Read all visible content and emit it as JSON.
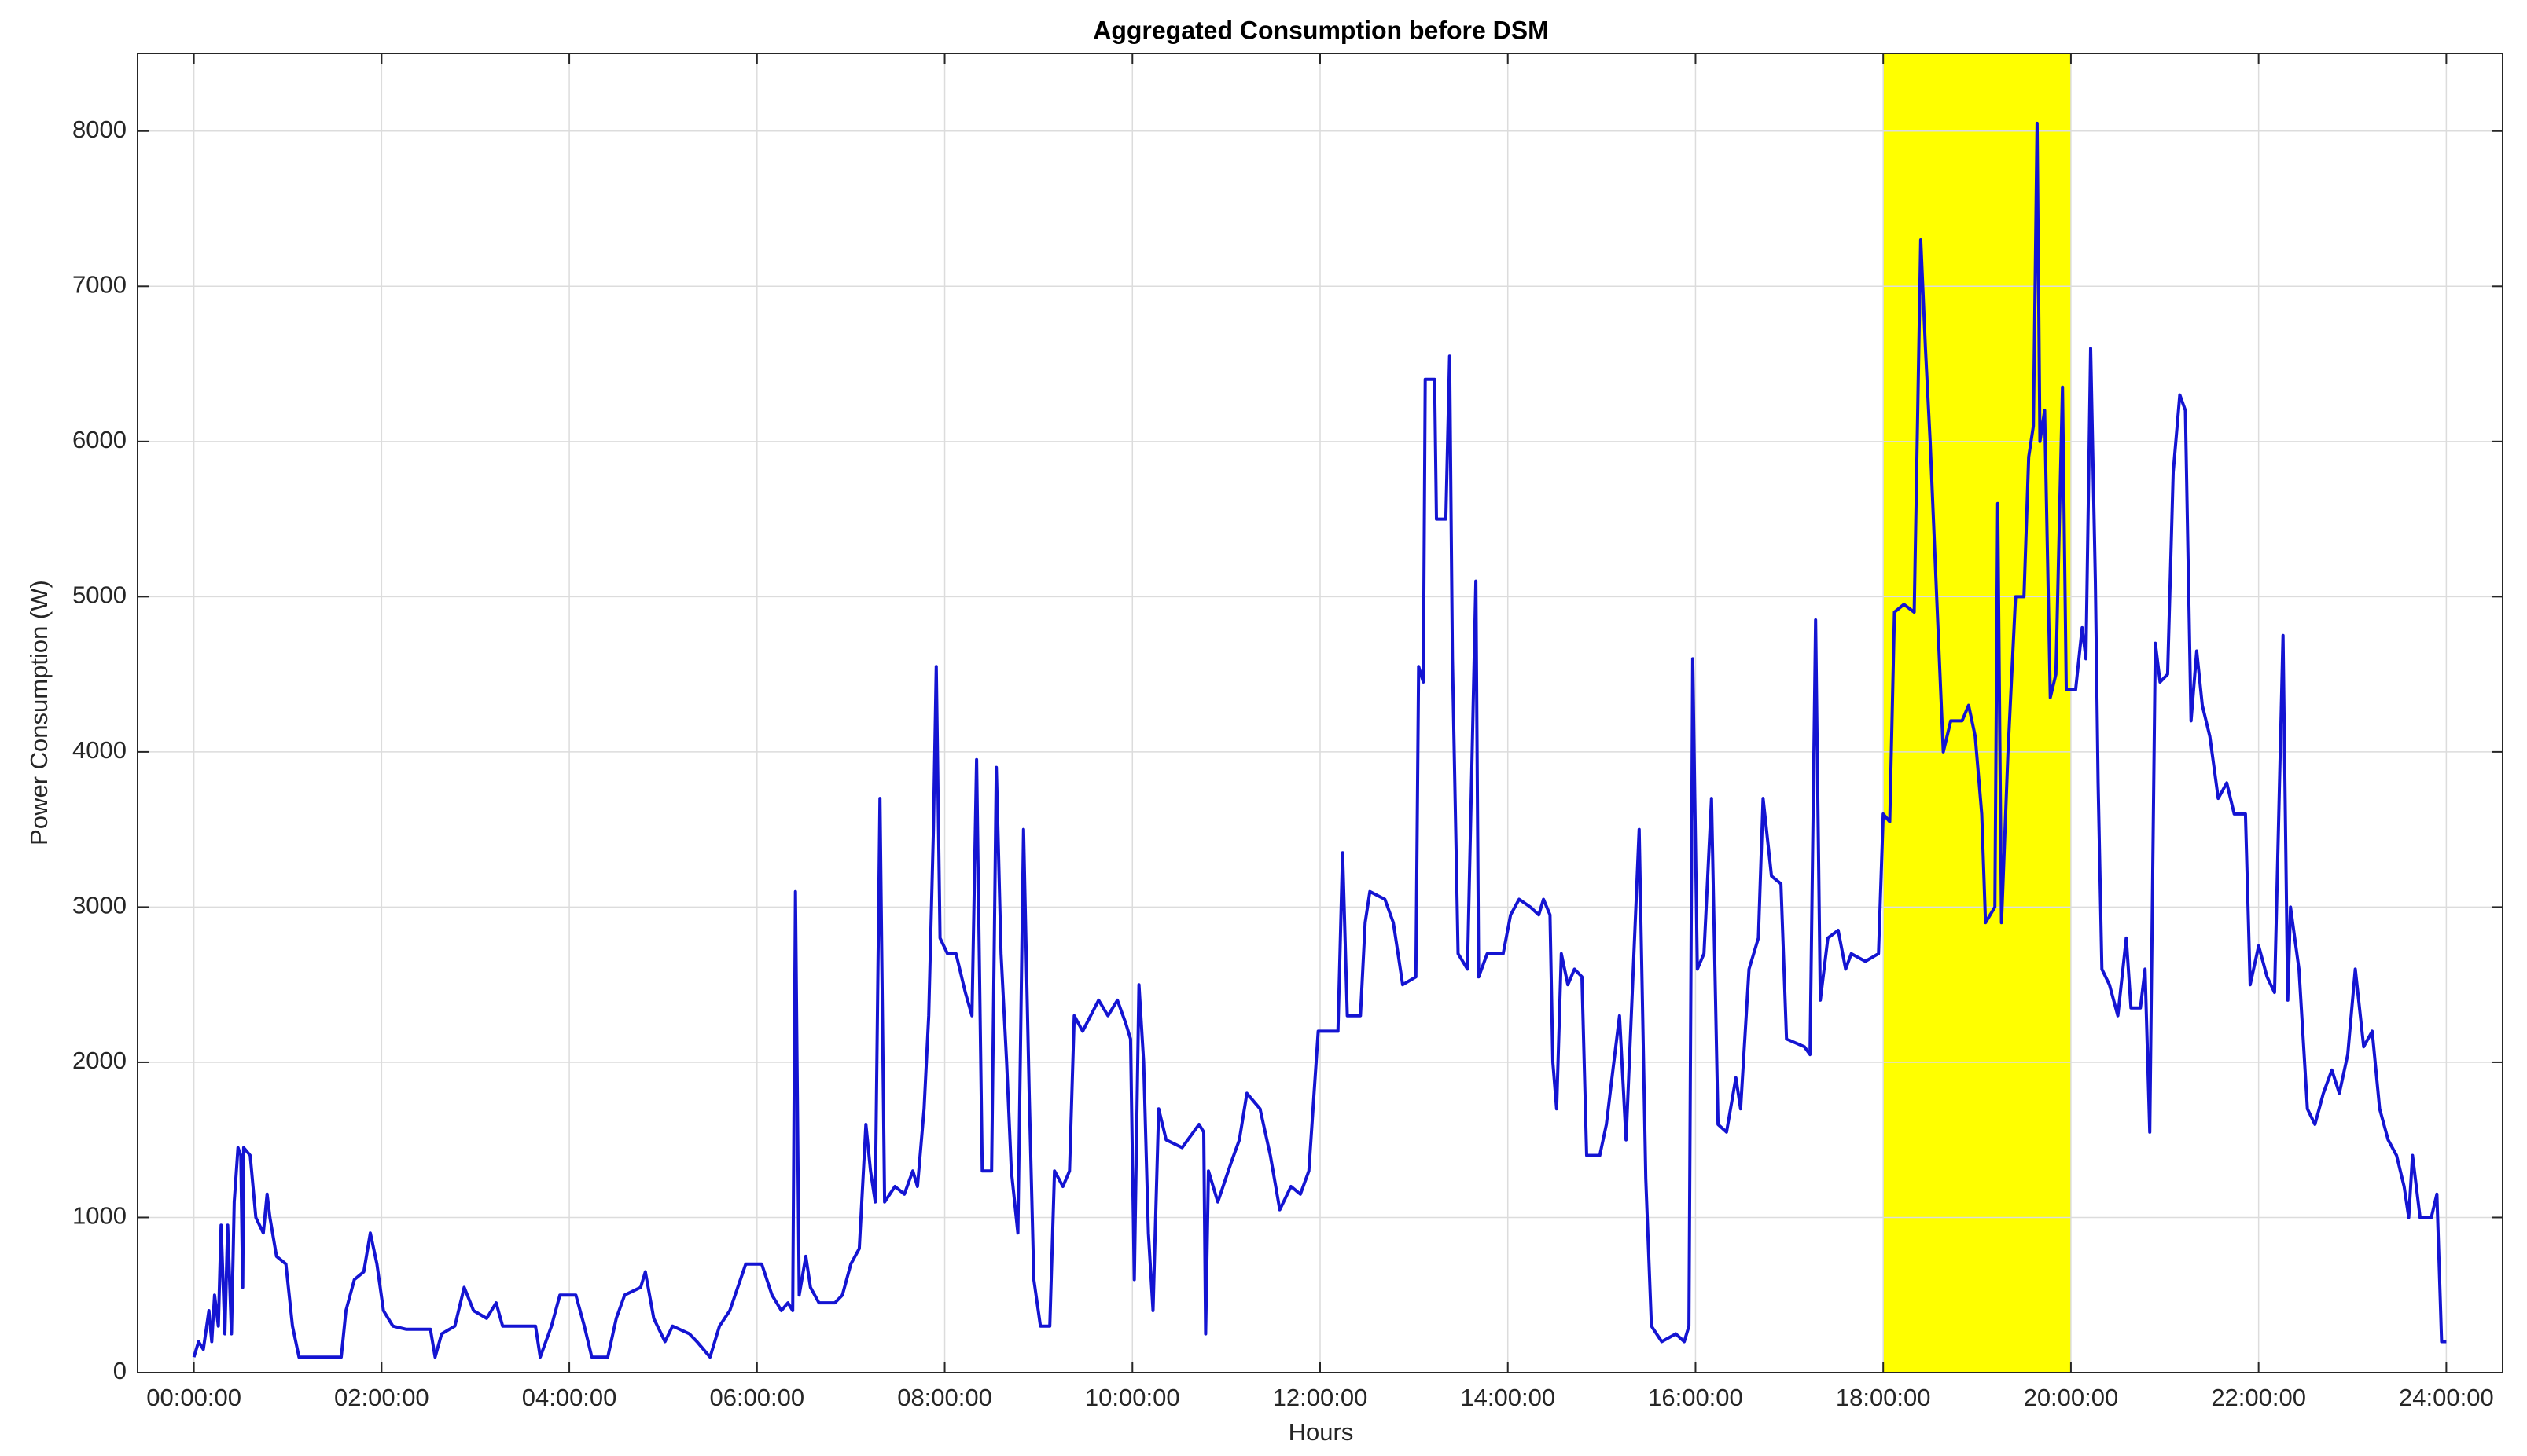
{
  "chart_data": {
    "type": "line",
    "title": "Aggregated Consumption before DSM",
    "x_label": "Hours",
    "y_label": "Power Consumption (W)",
    "xlim": [
      -0.6,
      24.6
    ],
    "ylim": [
      0,
      8500
    ],
    "xticks": [
      {
        "value": 0,
        "label": "00:00:00"
      },
      {
        "value": 2,
        "label": "02:00:00"
      },
      {
        "value": 4,
        "label": "04:00:00"
      },
      {
        "value": 6,
        "label": "06:00:00"
      },
      {
        "value": 8,
        "label": "08:00:00"
      },
      {
        "value": 10,
        "label": "10:00:00"
      },
      {
        "value": 12,
        "label": "12:00:00"
      },
      {
        "value": 14,
        "label": "14:00:00"
      },
      {
        "value": 16,
        "label": "16:00:00"
      },
      {
        "value": 18,
        "label": "18:00:00"
      },
      {
        "value": 20,
        "label": "20:00:00"
      },
      {
        "value": 22,
        "label": "22:00:00"
      },
      {
        "value": 24,
        "label": "24:00:00"
      }
    ],
    "yticks": [
      0,
      1000,
      2000,
      3000,
      4000,
      5000,
      6000,
      7000,
      8000
    ],
    "grid": true,
    "highlight_x": [
      18,
      20
    ],
    "highlight_color": "#ffff00",
    "series": [
      {
        "color": "#1414d2",
        "x": [
          0,
          0.05,
          0.1,
          0.16,
          0.19,
          0.22,
          0.26,
          0.29,
          0.33,
          0.36,
          0.4,
          0.43,
          0.47,
          0.5,
          0.52,
          0.53,
          0.6,
          0.66,
          0.74,
          0.78,
          0.81,
          0.88,
          0.98,
          1.05,
          1.12,
          1.31,
          1.57,
          1.62,
          1.71,
          1.81,
          1.88,
          1.95,
          2.02,
          2.12,
          2.26,
          2.52,
          2.57,
          2.64,
          2.78,
          2.88,
          2.98,
          3.12,
          3.22,
          3.29,
          3.64,
          3.69,
          3.81,
          3.9,
          4.07,
          4.16,
          4.24,
          4.41,
          4.5,
          4.59,
          4.76,
          4.81,
          4.9,
          5.02,
          5.1,
          5.28,
          5.36,
          5.5,
          5.6,
          5.71,
          5.88,
          6.05,
          6.16,
          6.26,
          6.33,
          6.38,
          6.41,
          6.45,
          6.52,
          6.57,
          6.66,
          6.83,
          6.91,
          7.0,
          7.09,
          7.16,
          7.21,
          7.26,
          7.31,
          7.36,
          7.47,
          7.57,
          7.66,
          7.71,
          7.78,
          7.83,
          7.88,
          7.91,
          7.95,
          8.03,
          8.12,
          8.22,
          8.29,
          8.34,
          8.4,
          8.5,
          8.55,
          8.6,
          8.66,
          8.71,
          8.78,
          8.84,
          8.9,
          8.95,
          9.02,
          9.12,
          9.17,
          9.26,
          9.33,
          9.38,
          9.47,
          9.64,
          9.74,
          9.84,
          9.93,
          9.98,
          10.02,
          10.07,
          10.12,
          10.17,
          10.22,
          10.28,
          10.36,
          10.53,
          10.71,
          10.76,
          10.78,
          10.81,
          10.91,
          11.05,
          11.14,
          11.22,
          11.36,
          11.47,
          11.57,
          11.69,
          11.79,
          11.88,
          11.98,
          12.19,
          12.24,
          12.29,
          12.43,
          12.48,
          12.53,
          12.69,
          12.78,
          12.83,
          12.88,
          13.02,
          13.05,
          13.1,
          13.12,
          13.22,
          13.24,
          13.34,
          13.38,
          13.41,
          13.47,
          13.57,
          13.66,
          13.69,
          13.78,
          13.95,
          14.03,
          14.12,
          14.24,
          14.33,
          14.38,
          14.45,
          14.48,
          14.52,
          14.57,
          14.64,
          14.71,
          14.79,
          14.84,
          14.98,
          15.05,
          15.12,
          15.19,
          15.26,
          15.4,
          15.47,
          15.53,
          15.64,
          15.79,
          15.88,
          15.93,
          15.97,
          16.02,
          16.09,
          16.17,
          16.24,
          16.33,
          16.43,
          16.48,
          16.57,
          16.67,
          16.72,
          16.81,
          16.91,
          16.97,
          17.16,
          17.22,
          17.28,
          17.33,
          17.41,
          17.52,
          17.6,
          17.66,
          17.81,
          17.95,
          18.0,
          18.07,
          18.12,
          18.22,
          18.33,
          18.4,
          18.45,
          18.5,
          18.57,
          18.64,
          18.72,
          18.84,
          18.91,
          18.98,
          19.05,
          19.09,
          19.19,
          19.22,
          19.26,
          19.33,
          19.41,
          19.5,
          19.55,
          19.6,
          19.64,
          19.67,
          19.72,
          19.78,
          19.84,
          19.91,
          19.95,
          20.05,
          20.12,
          20.16,
          20.21,
          20.26,
          20.29,
          20.33,
          20.41,
          20.5,
          20.59,
          20.64,
          20.74,
          20.79,
          20.84,
          20.9,
          20.95,
          21.03,
          21.09,
          21.16,
          21.22,
          21.28,
          21.34,
          21.4,
          21.48,
          21.57,
          21.66,
          21.74,
          21.86,
          21.91,
          22.0,
          22.09,
          22.17,
          22.26,
          22.31,
          22.34,
          22.43,
          22.52,
          22.6,
          22.69,
          22.78,
          22.86,
          22.95,
          23.03,
          23.12,
          23.21,
          23.29,
          23.38,
          23.47,
          23.55,
          23.6,
          23.64,
          23.72,
          23.84,
          23.9,
          23.95,
          24.0
        ],
        "values": [
          100,
          200,
          150,
          400,
          200,
          500,
          300,
          950,
          250,
          950,
          250,
          1100,
          1450,
          1400,
          550,
          1450,
          1400,
          1000,
          900,
          1150,
          1000,
          750,
          700,
          300,
          100,
          100,
          100,
          400,
          600,
          650,
          900,
          700,
          400,
          300,
          280,
          280,
          100,
          250,
          300,
          550,
          400,
          350,
          450,
          300,
          300,
          100,
          300,
          500,
          500,
          300,
          100,
          100,
          350,
          500,
          550,
          650,
          350,
          200,
          300,
          250,
          200,
          100,
          300,
          400,
          700,
          700,
          500,
          400,
          450,
          400,
          3100,
          500,
          750,
          550,
          450,
          450,
          500,
          700,
          800,
          1600,
          1300,
          1100,
          3700,
          1100,
          1200,
          1150,
          1300,
          1200,
          1700,
          2300,
          3500,
          4550,
          2800,
          2700,
          2700,
          2450,
          2300,
          3950,
          1300,
          1300,
          3900,
          2700,
          2000,
          1300,
          900,
          3500,
          1800,
          600,
          300,
          300,
          1300,
          1200,
          1300,
          2300,
          2200,
          2400,
          2300,
          2400,
          2250,
          2150,
          600,
          2500,
          2000,
          900,
          400,
          1700,
          1500,
          1450,
          1600,
          1550,
          250,
          1300,
          1100,
          1350,
          1500,
          1800,
          1700,
          1400,
          1050,
          1200,
          1150,
          1300,
          2200,
          2200,
          3350,
          2300,
          2300,
          2900,
          3100,
          3050,
          2900,
          2700,
          2500,
          2550,
          4550,
          4450,
          6400,
          6400,
          5500,
          5500,
          6550,
          4600,
          2700,
          2600,
          5100,
          2550,
          2700,
          2700,
          2950,
          3050,
          3000,
          2950,
          3050,
          2950,
          2000,
          1700,
          2700,
          2500,
          2600,
          2550,
          1400,
          1400,
          1600,
          1950,
          2300,
          1500,
          3500,
          1250,
          300,
          200,
          250,
          200,
          300,
          4600,
          2600,
          2700,
          3700,
          1600,
          1550,
          1900,
          1700,
          2600,
          2800,
          3700,
          3200,
          3150,
          2150,
          2100,
          2050,
          4850,
          2400,
          2800,
          2850,
          2600,
          2700,
          2650,
          2700,
          3600,
          3550,
          4900,
          4950,
          4900,
          7300,
          6600,
          6000,
          5000,
          4000,
          4200,
          4200,
          4300,
          4100,
          3600,
          2900,
          3000,
          5600,
          2900,
          4000,
          5000,
          5000,
          5900,
          6100,
          8050,
          6000,
          6200,
          4350,
          4500,
          6350,
          4400,
          4400,
          4800,
          4600,
          6600,
          5100,
          3800,
          2600,
          2500,
          2300,
          2800,
          2350,
          2350,
          2600,
          1550,
          4700,
          4450,
          4500,
          5800,
          6300,
          6200,
          4200,
          4650,
          4300,
          4100,
          3700,
          3800,
          3600,
          3600,
          2500,
          2750,
          2550,
          2450,
          4750,
          2400,
          3000,
          2600,
          1700,
          1600,
          1800,
          1950,
          1800,
          2050,
          2600,
          2100,
          2200,
          1700,
          1500,
          1400,
          1200,
          1000,
          1400,
          1000,
          1000,
          1150,
          200,
          200
        ]
      }
    ]
  }
}
